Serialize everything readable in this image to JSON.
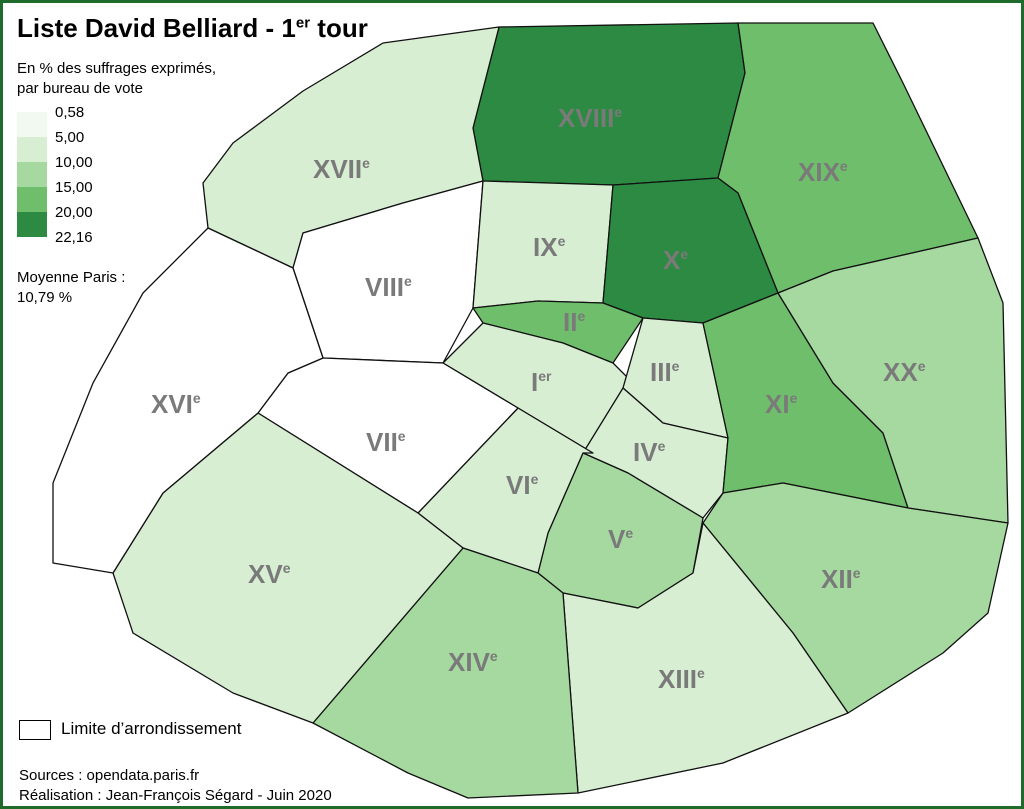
{
  "map": {
    "title": "Liste David Belliard - 1",
    "title_superscript": "er",
    "title_suffix": " tour",
    "subtitle_line1": "En % des suffrages exprimés,",
    "subtitle_line2": "par bureau de vote",
    "legend": [
      {
        "label": "0,58",
        "color": "#ffffff"
      },
      {
        "label": "5,00",
        "color": "#d7eed3"
      },
      {
        "label": "10,00",
        "color": "#a6d9a0"
      },
      {
        "label": "15,00",
        "color": "#6fbe6b"
      },
      {
        "label": "20,00",
        "color": "#2d8a42"
      },
      {
        "label": "22,16",
        "color": "#0c4a1f"
      }
    ],
    "average_label": "Moyenne  Paris :",
    "average_value": "10,79 %",
    "boundary_legend": "Limite d’arrondissement",
    "sources": "Sources : opendata.paris.fr",
    "credit": "Réalisation : Jean-François Ségard - Juin 2020",
    "arrondissements": [
      {
        "id": "I",
        "roman": "I",
        "suffix": "er",
        "fill": "#d7eed3"
      },
      {
        "id": "II",
        "roman": "II",
        "suffix": "e",
        "fill": "#6fbe6b"
      },
      {
        "id": "III",
        "roman": "III",
        "suffix": "e",
        "fill": "#d7eed3"
      },
      {
        "id": "IV",
        "roman": "IV",
        "suffix": "e",
        "fill": "#d7eed3"
      },
      {
        "id": "V",
        "roman": "V",
        "suffix": "e",
        "fill": "#a6d9a0"
      },
      {
        "id": "VI",
        "roman": "VI",
        "suffix": "e",
        "fill": "#d7eed3"
      },
      {
        "id": "VII",
        "roman": "VII",
        "suffix": "e",
        "fill": "#ffffff"
      },
      {
        "id": "VIII",
        "roman": "VIII",
        "suffix": "e",
        "fill": "#ffffff"
      },
      {
        "id": "IX",
        "roman": "IX",
        "suffix": "e",
        "fill": "#d7eed3"
      },
      {
        "id": "X",
        "roman": "X",
        "suffix": "e",
        "fill": "#2d8a42"
      },
      {
        "id": "XI",
        "roman": "XI",
        "suffix": "e",
        "fill": "#6fbe6b"
      },
      {
        "id": "XII",
        "roman": "XII",
        "suffix": "e",
        "fill": "#a6d9a0"
      },
      {
        "id": "XIII",
        "roman": "XIII",
        "suffix": "e",
        "fill": "#d7eed3"
      },
      {
        "id": "XIV",
        "roman": "XIV",
        "suffix": "e",
        "fill": "#a6d9a0"
      },
      {
        "id": "XV",
        "roman": "XV",
        "suffix": "e",
        "fill": "#d7eed3"
      },
      {
        "id": "XVI",
        "roman": "XVI",
        "suffix": "e",
        "fill": "#ffffff"
      },
      {
        "id": "XVII",
        "roman": "XVII",
        "suffix": "e",
        "fill": "#d7eed3"
      },
      {
        "id": "XVIII",
        "roman": "XVIII",
        "suffix": "e",
        "fill": "#2d8a42"
      },
      {
        "id": "XIX",
        "roman": "XIX",
        "suffix": "e",
        "fill": "#6fbe6b"
      },
      {
        "id": "XX",
        "roman": "XX",
        "suffix": "e",
        "fill": "#a6d9a0"
      }
    ]
  }
}
